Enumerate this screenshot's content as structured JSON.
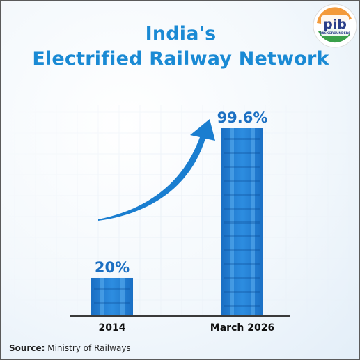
{
  "header": {
    "title_line1": "India's",
    "title_line2": "Electrified Railway Network"
  },
  "logo": {
    "text_main": "pib",
    "text_sub": "BACKGROUNDERS",
    "icon": "pib-logo"
  },
  "footer": {
    "source_label": "Source:",
    "source_value": "Ministry of Railways"
  },
  "colors": {
    "title": "#1a8ad4",
    "bar_dark": "#1a6fc4",
    "bar_mid": "#2d8de0",
    "bar_light": "#5eb0f0",
    "label": "#1b6fc2",
    "axis": "#3a3a3a",
    "arrow": "#1a7ed0",
    "grid": "#e7eef6"
  },
  "chart_data": {
    "type": "bar",
    "categories": [
      "2014",
      "March 2026"
    ],
    "values": [
      20,
      99.6
    ],
    "data_labels": [
      "20%",
      "99.6%"
    ],
    "ylim": [
      0,
      100
    ],
    "title": "India's Electrified Railway Network",
    "xlabel": "",
    "ylabel": "",
    "grid": true,
    "annotations": [
      "upward-arrow"
    ]
  }
}
